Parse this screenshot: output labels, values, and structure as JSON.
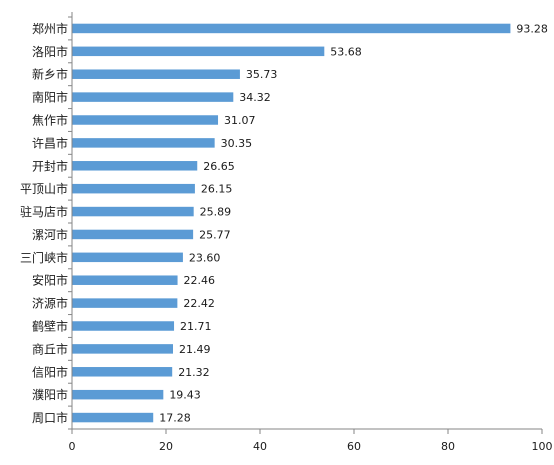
{
  "chart_data": {
    "type": "bar",
    "orientation": "horizontal",
    "title": "",
    "xlabel": "",
    "ylabel": "",
    "categories": [
      "郑州市",
      "洛阳市",
      "新乡市",
      "南阳市",
      "焦作市",
      "许昌市",
      "开封市",
      "平顶山市",
      "驻马店市",
      "漯河市",
      "三门峡市",
      "安阳市",
      "济源市",
      "鹤壁市",
      "商丘市",
      "信阳市",
      "濮阳市",
      "周口市"
    ],
    "values": [
      93.28,
      53.68,
      35.73,
      34.32,
      31.07,
      30.35,
      26.65,
      26.15,
      25.89,
      25.77,
      23.6,
      22.46,
      22.42,
      21.71,
      21.49,
      21.32,
      19.43,
      17.28
    ],
    "value_labels": [
      "93.28",
      "53.68",
      "35.73",
      "34.32",
      "31.07",
      "30.35",
      "26.65",
      "26.15",
      "25.89",
      "25.77",
      "23.60",
      "22.46",
      "22.42",
      "21.71",
      "21.49",
      "21.32",
      "19.43",
      "17.28"
    ],
    "xlim": [
      0,
      100
    ],
    "xticks": [
      0,
      20,
      40,
      60,
      80,
      100
    ],
    "xtick_labels": [
      "0",
      "20",
      "40",
      "60",
      "80",
      "100"
    ],
    "grid": false,
    "legend": "none",
    "bar_color": "#5b9bd5",
    "axis_color": "#868686"
  }
}
